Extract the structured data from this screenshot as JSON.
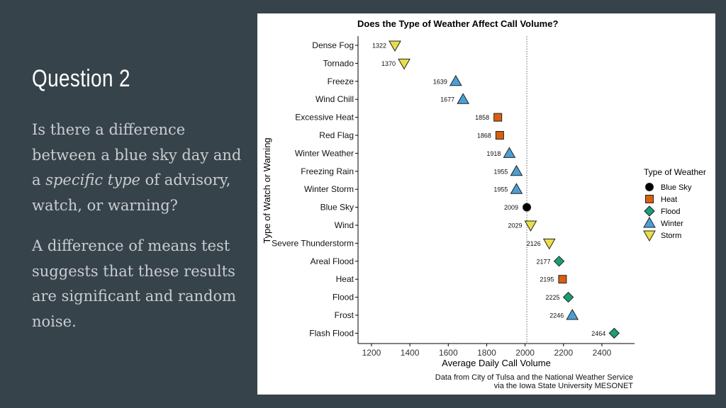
{
  "slide": {
    "title": "Question 2",
    "para1": {
      "before": "Is there a difference between a blue sky day and a ",
      "emphasis": "specific type",
      "after": " of advisory, watch, or warning?"
    },
    "para2": "A difference of means test suggests  that these results are significant and random noise."
  },
  "chart_data": {
    "type": "scatter",
    "title": "Does the Type of Weather Affect Call Volume?",
    "xlabel": "Average Daily Call Volume",
    "ylabel": "Type of Watch or Warning",
    "xlim": [
      1130,
      2570
    ],
    "xticks": [
      1200,
      1400,
      1600,
      1800,
      2000,
      2200,
      2400
    ],
    "reference_line": 2009,
    "legend": {
      "title": "Type of Weather",
      "position": "right",
      "items": [
        {
          "name": "Blue Sky",
          "marker": "circle",
          "color": "#000000"
        },
        {
          "name": "Heat",
          "marker": "square",
          "color": "#d95f0e"
        },
        {
          "name": "Flood",
          "marker": "diamond",
          "color": "#1a9e77"
        },
        {
          "name": "Winter",
          "marker": "triangle-up",
          "color": "#4b9fd5"
        },
        {
          "name": "Storm",
          "marker": "triangle-down",
          "color": "#e8de4a"
        }
      ]
    },
    "points": [
      {
        "label": "Dense Fog",
        "value": 1322,
        "type": "Storm"
      },
      {
        "label": "Tornado",
        "value": 1370,
        "type": "Storm"
      },
      {
        "label": "Freeze",
        "value": 1639,
        "type": "Winter"
      },
      {
        "label": "Wind Chill",
        "value": 1677,
        "type": "Winter"
      },
      {
        "label": "Excessive Heat",
        "value": 1858,
        "type": "Heat"
      },
      {
        "label": "Red Flag",
        "value": 1868,
        "type": "Heat"
      },
      {
        "label": "Winter Weather",
        "value": 1918,
        "type": "Winter"
      },
      {
        "label": "Freezing Rain",
        "value": 1955,
        "type": "Winter"
      },
      {
        "label": "Winter Storm",
        "value": 1955,
        "type": "Winter"
      },
      {
        "label": "Blue Sky",
        "value": 2009,
        "type": "Blue Sky"
      },
      {
        "label": "Wind",
        "value": 2029,
        "type": "Storm"
      },
      {
        "label": "Severe Thunderstorm",
        "value": 2126,
        "type": "Storm"
      },
      {
        "label": "Areal Flood",
        "value": 2177,
        "type": "Flood"
      },
      {
        "label": "Heat",
        "value": 2195,
        "type": "Heat"
      },
      {
        "label": "Flood",
        "value": 2225,
        "type": "Flood"
      },
      {
        "label": "Frost",
        "value": 2246,
        "type": "Winter"
      },
      {
        "label": "Flash Flood",
        "value": 2464,
        "type": "Flood"
      }
    ],
    "caption": [
      "Data from City of Tulsa and the National Weather Service",
      "via the Iowa State University MESONET"
    ]
  }
}
